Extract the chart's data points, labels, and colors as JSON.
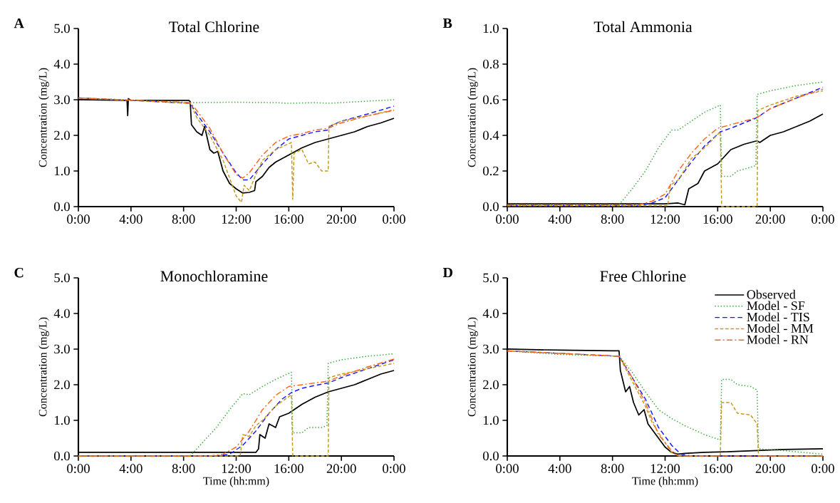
{
  "chart_data": [
    {
      "type": "line",
      "title": "Total Chlorine",
      "ylabel": "Concentration (mg/L)",
      "annotations": [
        "A"
      ],
      "xlim": [
        0,
        24
      ],
      "ylim": [
        0,
        5
      ],
      "xticks": [
        {
          "value": 0,
          "label": "0:00"
        },
        {
          "value": 4,
          "label": "4:00"
        },
        {
          "value": 8,
          "label": "8:00"
        },
        {
          "value": 12,
          "label": "12:00"
        },
        {
          "value": 16,
          "label": "16:00"
        },
        {
          "value": 20,
          "label": "20:00"
        },
        {
          "value": 24,
          "label": "0:00"
        }
      ],
      "yticks": [
        {
          "value": 0,
          "label": "0.0"
        },
        {
          "value": 1,
          "label": "1.0"
        },
        {
          "value": 2,
          "label": "2.0"
        },
        {
          "value": 3,
          "label": "3.0"
        },
        {
          "value": 4,
          "label": "4.0"
        },
        {
          "value": 5,
          "label": "5.0"
        }
      ],
      "legend": false,
      "series": [
        {
          "color": "#000000",
          "line_style": "solid",
          "x": [
            0,
            3.7,
            3.75,
            3.8,
            4,
            8.4,
            8.5,
            8.6,
            9,
            9.4,
            9.6,
            10,
            10.3,
            10.6,
            11,
            11.5,
            12,
            12.5,
            13,
            13.4,
            13.5,
            14,
            14.5,
            15,
            16,
            17,
            18,
            19,
            20,
            21,
            22,
            23,
            24
          ],
          "values": [
            3.0,
            2.98,
            2.55,
            3.03,
            2.98,
            2.98,
            2.95,
            2.3,
            2.1,
            2.0,
            2.25,
            1.6,
            1.5,
            1.55,
            1.0,
            0.65,
            0.5,
            0.38,
            0.4,
            0.45,
            0.7,
            0.85,
            1.1,
            1.25,
            1.45,
            1.65,
            1.8,
            1.9,
            2.0,
            2.1,
            2.25,
            2.35,
            2.48
          ]
        },
        {
          "color": "#3aa53a",
          "line_style": "dotted",
          "x": [
            0,
            8.5,
            12,
            15,
            16,
            18,
            19,
            24
          ],
          "values": [
            3.05,
            2.92,
            2.93,
            2.92,
            2.9,
            2.92,
            2.9,
            3.0
          ]
        },
        {
          "color": "#1a1aff",
          "line_style": "dashed",
          "x": [
            0,
            8.5,
            9,
            10,
            11,
            12,
            12.5,
            13,
            14,
            15,
            16,
            17,
            18,
            19,
            19.1,
            20,
            22,
            24
          ],
          "values": [
            3.05,
            2.9,
            2.6,
            2.1,
            1.5,
            0.95,
            0.75,
            0.75,
            1.2,
            1.6,
            1.9,
            2.0,
            2.1,
            2.15,
            2.25,
            2.4,
            2.6,
            2.82
          ]
        },
        {
          "color": "#c49a1c",
          "line_style": "dashed",
          "x": [
            0,
            8.5,
            9,
            10,
            11,
            11.5,
            12,
            12.4,
            12.6,
            13,
            13.5,
            14,
            15,
            16.2,
            16.3,
            16.4,
            17,
            17.5,
            18,
            18.5,
            19,
            19.05,
            20,
            22,
            24
          ],
          "values": [
            3.05,
            2.9,
            2.5,
            2.0,
            1.3,
            0.8,
            0.3,
            0.12,
            0.6,
            0.45,
            0.9,
            1.3,
            1.6,
            1.8,
            0.2,
            1.5,
            1.6,
            1.2,
            1.25,
            1.0,
            1.0,
            2.25,
            2.4,
            2.55,
            2.72
          ]
        },
        {
          "color": "#ff6619",
          "line_style": "dashdot",
          "x": [
            0,
            8.5,
            9,
            10,
            11,
            12,
            12.5,
            13,
            14,
            15,
            16,
            17,
            18,
            19,
            20,
            22,
            24
          ],
          "values": [
            3.05,
            2.92,
            2.7,
            2.2,
            1.5,
            0.9,
            0.8,
            0.95,
            1.45,
            1.8,
            1.98,
            2.05,
            2.15,
            2.2,
            2.35,
            2.55,
            2.7
          ]
        }
      ]
    },
    {
      "type": "line",
      "title": "Total Ammonia",
      "ylabel": "Concentration (mg/L)",
      "annotations": [
        "B"
      ],
      "xlim": [
        0,
        24
      ],
      "ylim": [
        0,
        1
      ],
      "xticks": [
        {
          "value": 0,
          "label": "0:00"
        },
        {
          "value": 4,
          "label": "4:00"
        },
        {
          "value": 8,
          "label": "8:00"
        },
        {
          "value": 12,
          "label": "12:00"
        },
        {
          "value": 16,
          "label": "16:00"
        },
        {
          "value": 20,
          "label": "20:00"
        },
        {
          "value": 24,
          "label": "0:00"
        }
      ],
      "yticks": [
        {
          "value": 0,
          "label": "0.0"
        },
        {
          "value": 0.2,
          "label": "0.2"
        },
        {
          "value": 0.4,
          "label": "0.4"
        },
        {
          "value": 0.6,
          "label": "0.6"
        },
        {
          "value": 0.8,
          "label": "0.8"
        },
        {
          "value": 1,
          "label": "1.0"
        }
      ],
      "legend": false,
      "series": [
        {
          "color": "#000000",
          "line_style": "solid",
          "x": [
            0,
            12,
            13,
            13.5,
            13.8,
            14.5,
            15,
            15.5,
            16,
            16.5,
            17,
            18,
            19,
            19.2,
            20,
            21,
            22,
            23,
            24
          ],
          "values": [
            0.015,
            0.015,
            0.02,
            0.01,
            0.1,
            0.13,
            0.2,
            0.22,
            0.24,
            0.28,
            0.32,
            0.35,
            0.37,
            0.36,
            0.4,
            0.42,
            0.45,
            0.48,
            0.52
          ]
        },
        {
          "color": "#3aa53a",
          "line_style": "dotted",
          "x": [
            0,
            8.5,
            9.5,
            10.5,
            11.5,
            12.5,
            13,
            14,
            15,
            16.2,
            16.3,
            17,
            17.5,
            18,
            18.9,
            19,
            20,
            22,
            24
          ],
          "values": [
            0.01,
            0.01,
            0.1,
            0.2,
            0.33,
            0.43,
            0.43,
            0.48,
            0.53,
            0.57,
            0.17,
            0.17,
            0.2,
            0.21,
            0.23,
            0.63,
            0.65,
            0.68,
            0.7
          ]
        },
        {
          "color": "#1a1aff",
          "line_style": "dashed",
          "x": [
            0,
            10,
            11,
            12,
            13,
            14,
            15,
            16.2,
            17,
            18,
            19,
            20,
            22,
            24
          ],
          "values": [
            0.005,
            0.005,
            0.02,
            0.05,
            0.15,
            0.25,
            0.34,
            0.42,
            0.44,
            0.47,
            0.5,
            0.55,
            0.61,
            0.67
          ]
        },
        {
          "color": "#c49a1c",
          "line_style": "dashed",
          "x": [
            0,
            12.2,
            12.4,
            13,
            14,
            15,
            16.2,
            16.3,
            19,
            19.05,
            20,
            22,
            24
          ],
          "values": [
            0.005,
            0.005,
            0.12,
            0.15,
            0.27,
            0.33,
            0.42,
            0,
            0,
            0.54,
            0.57,
            0.62,
            0.65
          ]
        },
        {
          "color": "#ff6619",
          "line_style": "dashdot",
          "x": [
            0,
            10,
            11,
            12,
            13,
            14,
            15,
            16,
            17,
            18,
            19,
            20,
            22,
            24
          ],
          "values": [
            0.01,
            0.01,
            0.03,
            0.07,
            0.2,
            0.3,
            0.38,
            0.44,
            0.46,
            0.48,
            0.5,
            0.55,
            0.61,
            0.66
          ]
        }
      ]
    },
    {
      "type": "line",
      "title": "Monochloramine",
      "xlabel": "Time (hh:mm)",
      "ylabel": "Concentration (mg/L)",
      "annotations": [
        "C"
      ],
      "xlim": [
        0,
        24
      ],
      "ylim": [
        0,
        5
      ],
      "xticks": [
        {
          "value": 0,
          "label": "0:00"
        },
        {
          "value": 4,
          "label": "4:00"
        },
        {
          "value": 8,
          "label": "8:00"
        },
        {
          "value": 12,
          "label": "12:00"
        },
        {
          "value": 16,
          "label": "16:00"
        },
        {
          "value": 20,
          "label": "20:00"
        },
        {
          "value": 24,
          "label": "0:00"
        }
      ],
      "yticks": [
        {
          "value": 0,
          "label": "0.0"
        },
        {
          "value": 1,
          "label": "1.0"
        },
        {
          "value": 2,
          "label": "2.0"
        },
        {
          "value": 3,
          "label": "3.0"
        },
        {
          "value": 4,
          "label": "4.0"
        },
        {
          "value": 5,
          "label": "5.0"
        }
      ],
      "legend": false,
      "series": [
        {
          "color": "#000000",
          "line_style": "solid",
          "x": [
            0,
            13,
            13.5,
            13.7,
            13.8,
            14.2,
            14.5,
            15,
            15.3,
            16,
            17,
            18,
            19,
            20,
            21,
            22,
            23,
            24
          ],
          "values": [
            0.1,
            0.1,
            0.1,
            0.2,
            0.6,
            0.5,
            0.9,
            0.8,
            1.1,
            1.2,
            1.45,
            1.65,
            1.8,
            1.9,
            2.0,
            2.15,
            2.3,
            2.4
          ]
        },
        {
          "color": "#3aa53a",
          "line_style": "dotted",
          "x": [
            0,
            8.5,
            9.5,
            10.5,
            11.5,
            12.5,
            13,
            14,
            15,
            16.2,
            16.3,
            17,
            17.5,
            18.5,
            18.9,
            19,
            20,
            22,
            24
          ],
          "values": [
            0,
            0,
            0.4,
            0.8,
            1.3,
            1.75,
            1.72,
            1.95,
            2.15,
            2.35,
            0.65,
            0.65,
            0.8,
            0.8,
            0.85,
            2.6,
            2.7,
            2.8,
            2.87
          ]
        },
        {
          "color": "#1a1aff",
          "line_style": "dashed",
          "x": [
            0,
            10.5,
            11.5,
            12.5,
            13.5,
            14.5,
            15.5,
            16.2,
            17,
            18,
            19,
            20,
            22,
            24
          ],
          "values": [
            0,
            0,
            0.05,
            0.3,
            0.7,
            1.2,
            1.6,
            1.78,
            1.9,
            1.98,
            2.05,
            2.2,
            2.45,
            2.7
          ]
        },
        {
          "color": "#c49a1c",
          "line_style": "dashed",
          "x": [
            0,
            12.3,
            12.5,
            13,
            13.5,
            14,
            15,
            16.2,
            16.3,
            19,
            19.05,
            20,
            22,
            24
          ],
          "values": [
            0,
            0,
            0.6,
            0.55,
            0.85,
            1.0,
            1.4,
            1.72,
            0,
            0,
            2.2,
            2.3,
            2.45,
            2.6
          ]
        },
        {
          "color": "#ff6619",
          "line_style": "dashdot",
          "x": [
            0,
            10,
            11,
            12,
            13,
            14,
            15,
            16,
            17,
            18,
            19,
            20,
            22,
            24
          ],
          "values": [
            0,
            0,
            0.05,
            0.25,
            0.7,
            1.3,
            1.7,
            1.95,
            2.0,
            2.05,
            2.1,
            2.25,
            2.5,
            2.72
          ]
        }
      ]
    },
    {
      "type": "line",
      "title": "Free Chlorine",
      "xlabel": "Time (hh:mm)",
      "ylabel": "Concentration (mg/L)",
      "annotations": [
        "D"
      ],
      "xlim": [
        0,
        24
      ],
      "ylim": [
        0,
        5
      ],
      "xticks": [
        {
          "value": 0,
          "label": "0:00"
        },
        {
          "value": 4,
          "label": "4:00"
        },
        {
          "value": 8,
          "label": "8:00"
        },
        {
          "value": 12,
          "label": "12:00"
        },
        {
          "value": 16,
          "label": "16:00"
        },
        {
          "value": 20,
          "label": "20:00"
        },
        {
          "value": 24,
          "label": "0:00"
        }
      ],
      "yticks": [
        {
          "value": 0,
          "label": "0.0"
        },
        {
          "value": 1,
          "label": "1.0"
        },
        {
          "value": 2,
          "label": "2.0"
        },
        {
          "value": 3,
          "label": "3.0"
        },
        {
          "value": 4,
          "label": "4.0"
        },
        {
          "value": 5,
          "label": "5.0"
        }
      ],
      "legend": "top right",
      "series": [
        {
          "name": "Observed",
          "color": "#000000",
          "line_style": "solid",
          "x": [
            0,
            4,
            8,
            8.5,
            8.6,
            9,
            9.3,
            9.6,
            10,
            10.4,
            10.7,
            11,
            11.5,
            12,
            12.5,
            13,
            13.5,
            15,
            17,
            19,
            21,
            24
          ],
          "values": [
            3.0,
            2.97,
            2.95,
            2.95,
            2.4,
            1.8,
            1.95,
            1.5,
            1.15,
            1.3,
            0.9,
            0.75,
            0.5,
            0.25,
            0.1,
            0.05,
            0.07,
            0.1,
            0.12,
            0.15,
            0.18,
            0.2
          ]
        },
        {
          "name": "Model - SF",
          "color": "#3aa53a",
          "line_style": "dotted",
          "x": [
            0,
            4,
            8.5,
            9.5,
            10.5,
            11.5,
            12.5,
            13.5,
            15,
            16.2,
            16.3,
            17,
            17.5,
            18.5,
            19,
            19.1,
            21,
            24
          ],
          "values": [
            2.95,
            2.85,
            2.8,
            2.35,
            1.8,
            1.3,
            1.05,
            0.85,
            0.6,
            0.45,
            2.15,
            2.15,
            2.0,
            1.95,
            1.85,
            0.2,
            0.15,
            0.05
          ]
        },
        {
          "name": "Model - TIS",
          "color": "#1a1aff",
          "line_style": "dashed",
          "x": [
            0,
            4,
            8.5,
            9.5,
            10.5,
            11.5,
            12.5,
            13.2,
            14,
            24
          ],
          "values": [
            2.95,
            2.88,
            2.8,
            2.2,
            1.6,
            0.8,
            0.3,
            0.05,
            0,
            0
          ]
        },
        {
          "name": "Model - MM",
          "color": "#c49a1c",
          "line_style": "dashed",
          "x": [
            0,
            8.5,
            9.5,
            10.5,
            11,
            11.5,
            12.5,
            13,
            16.2,
            16.3,
            17,
            17.5,
            18.5,
            19,
            19.1,
            24
          ],
          "values": [
            2.95,
            2.8,
            2.1,
            1.4,
            0.95,
            0.65,
            0.1,
            0,
            0,
            1.5,
            1.5,
            1.2,
            1.15,
            0.9,
            0,
            0
          ]
        },
        {
          "name": "Model - RN",
          "color": "#ff6619",
          "line_style": "dashdot",
          "x": [
            0,
            8.5,
            9.5,
            10.5,
            11.5,
            12.5,
            13,
            24
          ],
          "values": [
            2.95,
            2.8,
            2.2,
            1.5,
            0.6,
            0.15,
            0,
            0
          ]
        }
      ]
    }
  ]
}
